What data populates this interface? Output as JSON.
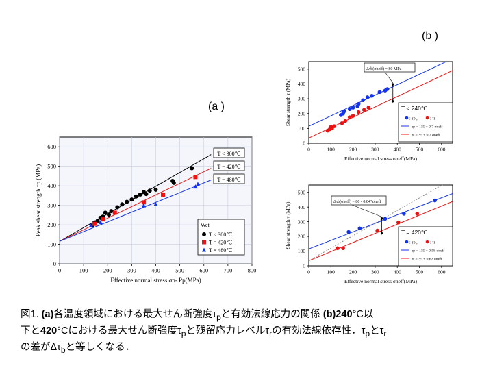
{
  "panels": {
    "a_label": "(a )",
    "b_label": "(b )"
  },
  "chart_data": [
    {
      "type": "scatter",
      "panel": "(a )",
      "xlabel": "Effective normal stress σn- Pp(MPa)",
      "ylabel": "Peak shear strength τp (MPa)",
      "xlim": [
        0,
        800
      ],
      "ylim": [
        0,
        650
      ],
      "xticks": [
        0,
        100,
        200,
        300,
        400,
        500,
        600,
        700,
        800
      ],
      "yticks": [
        0,
        100,
        200,
        300,
        400,
        500,
        600
      ],
      "grid": true,
      "legend_title": "Wet",
      "legend_position": "bottom-right",
      "series": [
        {
          "name": "T < 300℃",
          "marker": "circle",
          "color": "#000000",
          "points": [
            [
              135,
              196
            ],
            [
              145,
              212
            ],
            [
              158,
              220
            ],
            [
              170,
              236
            ],
            [
              180,
              242
            ],
            [
              190,
              262
            ],
            [
              205,
              252
            ],
            [
              215,
              270
            ],
            [
              240,
              290
            ],
            [
              260,
              305
            ],
            [
              280,
              318
            ],
            [
              300,
              330
            ],
            [
              318,
              345
            ],
            [
              335,
              355
            ],
            [
              350,
              368
            ],
            [
              360,
              358
            ],
            [
              375,
              375
            ],
            [
              400,
              380
            ],
            [
              470,
              425
            ],
            [
              475,
              415
            ],
            [
              550,
              490
            ]
          ]
        },
        {
          "name": "T = 420℃",
          "marker": "square",
          "color": "#ee1111",
          "points": [
            [
              145,
              205
            ],
            [
              180,
              228
            ],
            [
              230,
              262
            ],
            [
              350,
              315
            ],
            [
              430,
              355
            ],
            [
              565,
              445
            ]
          ]
        },
        {
          "name": "T = 480℃",
          "marker": "triangle",
          "color": "#1133ee",
          "points": [
            [
              130,
              195
            ],
            [
              170,
              212
            ],
            [
              350,
              298
            ],
            [
              400,
              305
            ],
            [
              565,
              395
            ],
            [
              575,
              408
            ]
          ]
        }
      ],
      "fit_lines": [
        {
          "label": "T < 300℃",
          "color": "#000000",
          "x": [
            0,
            630
          ],
          "y": [
            115,
            560
          ]
        },
        {
          "label": "T = 420℃",
          "color": "#ee1111",
          "x": [
            0,
            630
          ],
          "y": [
            115,
            490
          ]
        },
        {
          "label": "T = 480℃",
          "color": "#1133ee",
          "x": [
            0,
            630
          ],
          "y": [
            115,
            430
          ]
        }
      ]
    },
    {
      "type": "scatter",
      "panel": "(b ) upper",
      "xlabel": "Effective normal stress σneff(MPa)",
      "ylabel": "Shear strength τ (MPa)",
      "xlim": [
        0,
        650
      ],
      "ylim": [
        0,
        550
      ],
      "xticks": [
        0,
        100,
        200,
        300,
        400,
        500,
        600
      ],
      "yticks": [
        0,
        100,
        200,
        300,
        400,
        500
      ],
      "legend_title": "T < 240℃",
      "legend_position": "bottom-right",
      "annotation": "Δτb(σneff) = 80 MPa",
      "series": [
        {
          "name": "τp",
          "marker": "circle",
          "color": "#1133ee",
          "points": [
            [
              145,
              190
            ],
            [
              155,
              200
            ],
            [
              160,
              215
            ],
            [
              185,
              230
            ],
            [
              200,
              240
            ],
            [
              220,
              250
            ],
            [
              225,
              265
            ],
            [
              245,
              290
            ],
            [
              265,
              310
            ],
            [
              285,
              320
            ],
            [
              320,
              345
            ],
            [
              345,
              355
            ],
            [
              355,
              365
            ]
          ]
        },
        {
          "name": "τr",
          "marker": "circle",
          "color": "#ee1111",
          "points": [
            [
              85,
              85
            ],
            [
              95,
              95
            ],
            [
              100,
              110
            ],
            [
              105,
              100
            ],
            [
              115,
              115
            ],
            [
              150,
              135
            ],
            [
              165,
              150
            ],
            [
              185,
              175
            ],
            [
              200,
              185
            ],
            [
              225,
              210
            ],
            [
              250,
              225
            ],
            [
              270,
              240
            ]
          ]
        }
      ],
      "fit_lines": [
        {
          "label": "τp = 115 + 0.7 σneff",
          "color": "#1133ee",
          "x": [
            0,
            650
          ],
          "y": [
            115,
            570
          ]
        },
        {
          "label": "τr = 35 + 0.7 σneff",
          "color": "#ee1111",
          "x": [
            0,
            650
          ],
          "y": [
            35,
            490
          ]
        }
      ]
    },
    {
      "type": "scatter",
      "panel": "(b ) lower",
      "xlabel": "Effective normal stress σneff(MPa)",
      "ylabel": "Shear strength τ (MPa)",
      "xlim": [
        0,
        650
      ],
      "ylim": [
        0,
        550
      ],
      "xticks": [
        0,
        100,
        200,
        300,
        400,
        500,
        600
      ],
      "yticks": [
        0,
        100,
        200,
        300,
        400,
        500
      ],
      "legend_title": "T = 420℃",
      "legend_position": "bottom-right",
      "annotation": "Δτb(σneff) = 80 - 0.04*σneff",
      "series": [
        {
          "name": "τp",
          "marker": "circle",
          "color": "#1133ee",
          "points": [
            [
              180,
              230
            ],
            [
              230,
              255
            ],
            [
              345,
              320
            ],
            [
              430,
              355
            ],
            [
              570,
              445
            ]
          ]
        },
        {
          "name": "τr",
          "marker": "circle",
          "color": "#ee1111",
          "points": [
            [
              130,
              120
            ],
            [
              155,
              120
            ],
            [
              310,
              240
            ],
            [
              405,
              295
            ],
            [
              490,
              355
            ]
          ]
        }
      ],
      "fit_lines": [
        {
          "label": "τp = 115 + 0.58 σneff",
          "color": "#1133ee",
          "x": [
            0,
            650
          ],
          "y": [
            115,
            492
          ]
        },
        {
          "label": "τr = 35 + 0.62 σneff",
          "color": "#ee1111",
          "x": [
            0,
            650
          ],
          "y": [
            35,
            438
          ]
        },
        {
          "label": "",
          "color": "#888888",
          "dashed": true,
          "x": [
            0,
            650
          ],
          "y": [
            35,
            590
          ]
        }
      ]
    }
  ],
  "caption": {
    "line1_a": "図1. ",
    "line1_b": "(a)",
    "line1_c": "各温度領域における最大せん断強度τ",
    "line1_sub1": "p",
    "line1_d": "と有効法線応力の関係 ",
    "line1_e": "(b)240",
    "line1_f": "°C以",
    "line2_a": "下と",
    "line2_b": "420",
    "line2_c": "°Cにおける最大せん断強度τ",
    "line2_sub1": "p",
    "line2_d": "と残留応力レベルτ",
    "line2_sub2": "r",
    "line2_e": "の有効法線依存性．τ",
    "line2_sub3": "p",
    "line2_f": "とτ",
    "line2_sub4": "r",
    "line3_a": "の差がΔτ",
    "line3_sub1": "b",
    "line3_b": "と等しくなる．"
  }
}
